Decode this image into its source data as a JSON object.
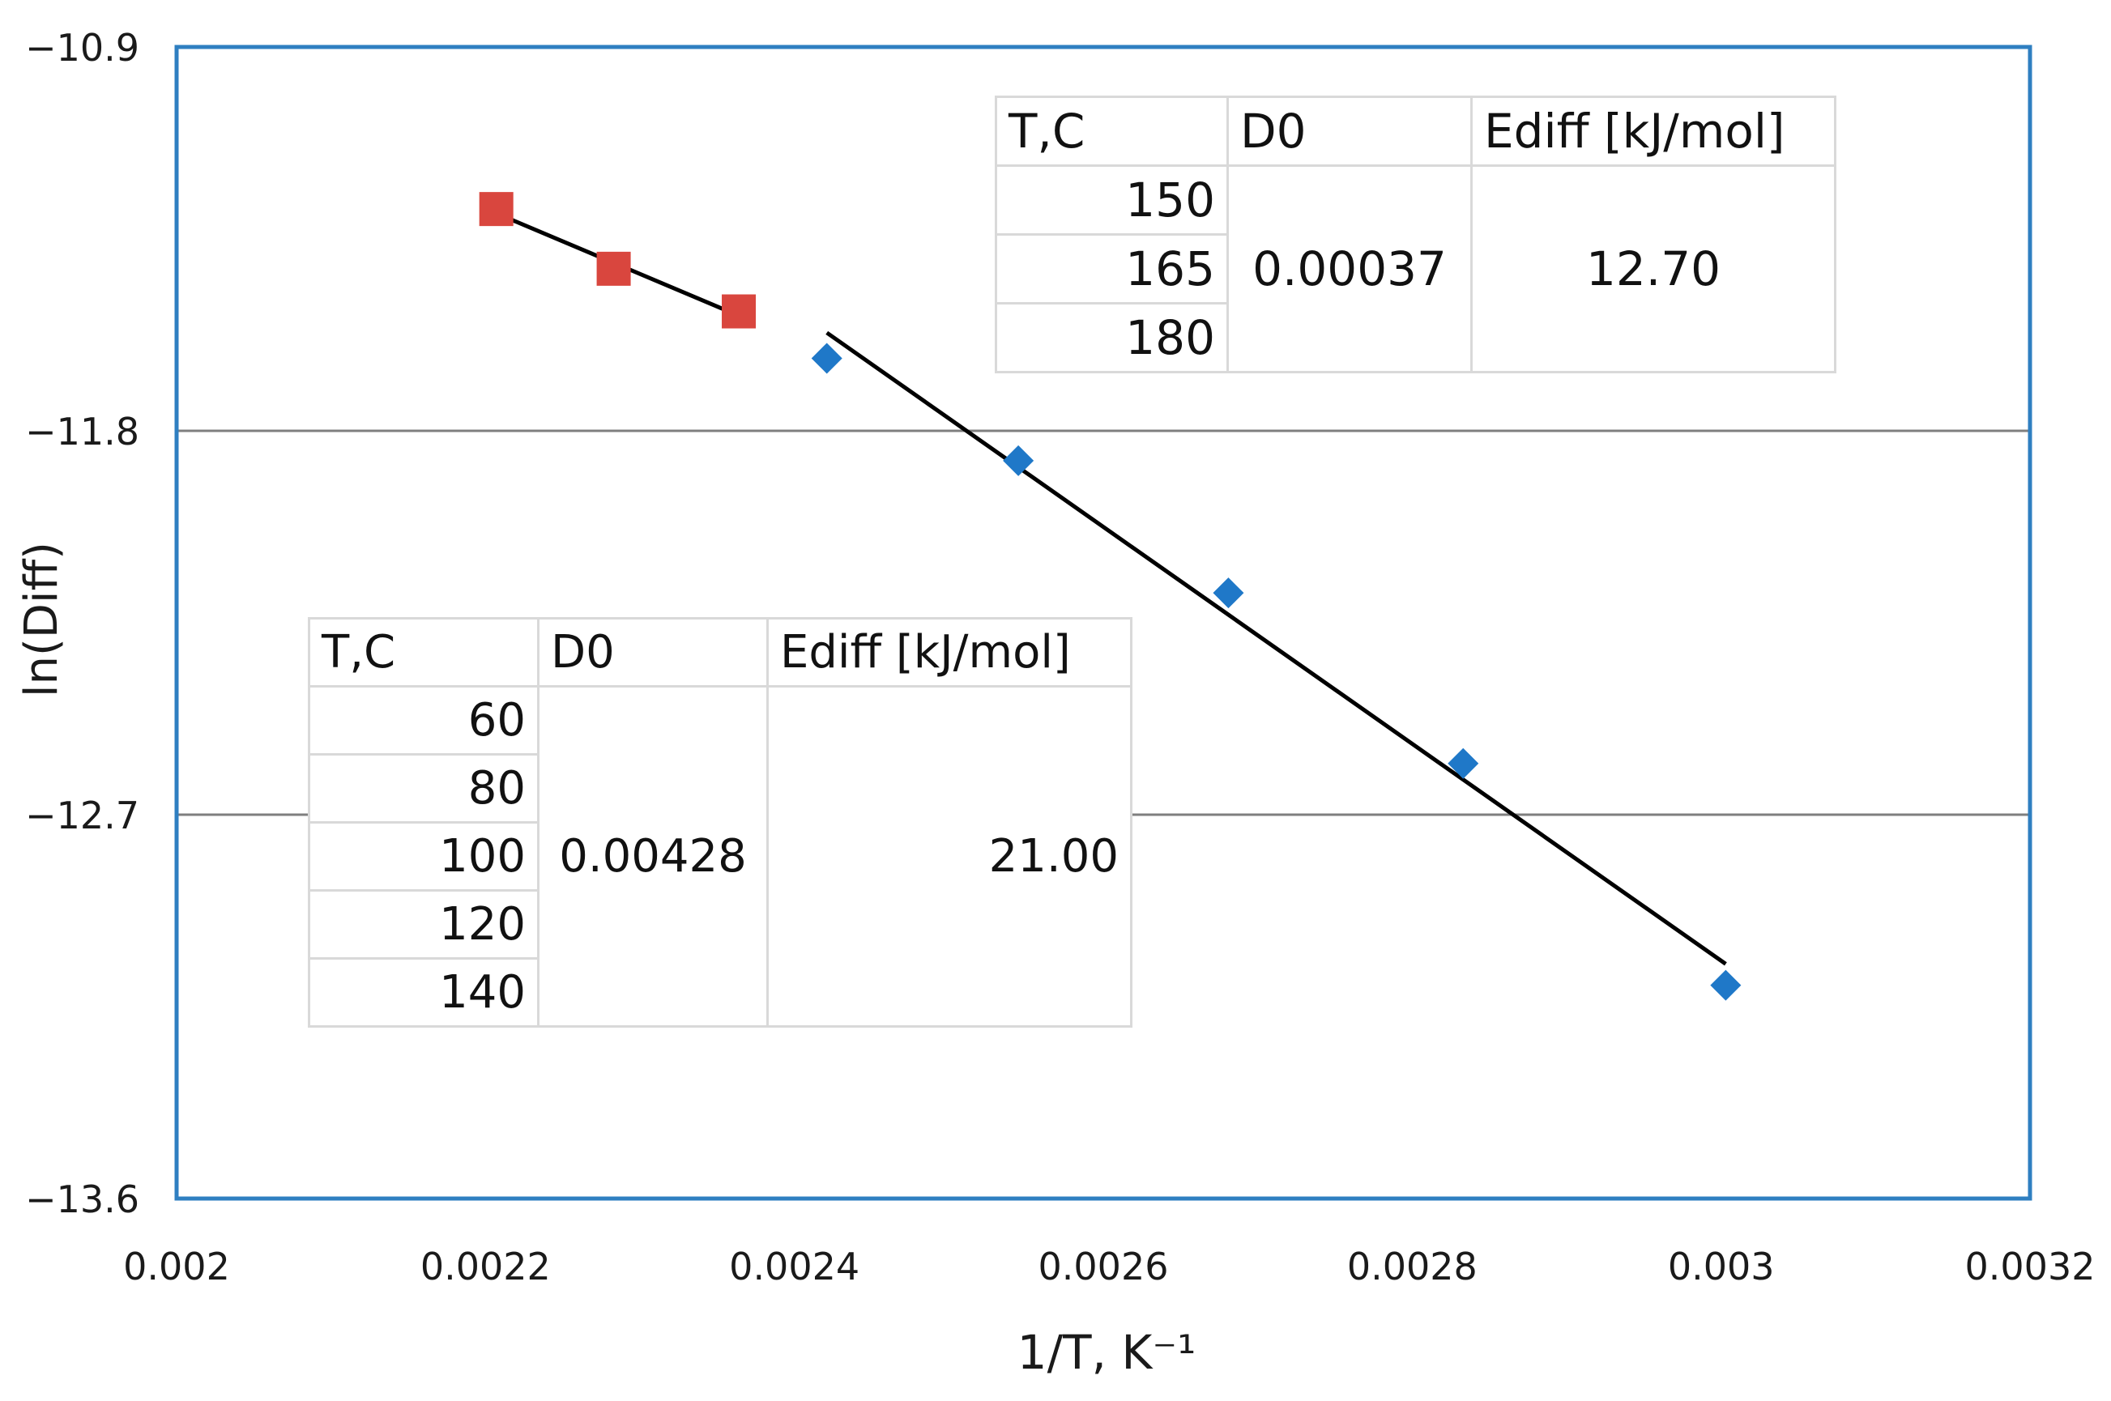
{
  "chart_data": {
    "type": "scatter",
    "xlabel": "1/T, K⁻¹",
    "ylabel": "ln(Diff)",
    "xlim": [
      0.002,
      0.0032
    ],
    "ylim": [
      -13.6,
      -10.9
    ],
    "xticks": [
      "0.002",
      "0.0022",
      "0.0024",
      "0.0026",
      "0.0028",
      "0.003",
      "0.0032"
    ],
    "yticks": [
      "-10.9",
      "-11.8",
      "-12.7",
      "-13.6"
    ],
    "grid": "horizontal",
    "series": [
      {
        "marker": "square",
        "color": "#d9463e",
        "x": [
          0.002207,
          0.002283,
          0.002364
        ],
        "y": [
          -11.28,
          -11.42,
          -11.52
        ],
        "trendline": {
          "x": [
            0.002207,
            0.002364
          ],
          "y": [
            -11.29,
            -11.53
          ]
        }
      },
      {
        "marker": "diamond",
        "color": "#1f78c8",
        "x": [
          0.002421,
          0.002545,
          0.002681,
          0.002833,
          0.003003
        ],
        "y": [
          -11.63,
          -11.87,
          -12.18,
          -12.58,
          -13.1
        ],
        "trendline": {
          "x": [
            0.002421,
            0.003003
          ],
          "y": [
            -11.57,
            -13.05
          ]
        }
      }
    ]
  },
  "tables": {
    "high": {
      "headers": [
        "T,C",
        "D0",
        "Ediff [kJ/mol]"
      ],
      "temps": [
        "150",
        "165",
        "180"
      ],
      "d0": "0.00037",
      "ediff": "12.70"
    },
    "low": {
      "headers": [
        "T,C",
        "D0",
        "Ediff [kJ/mol]"
      ],
      "temps": [
        "60",
        "80",
        "100",
        "120",
        "140"
      ],
      "d0": "0.00428",
      "ediff": "21.00"
    }
  },
  "colors": {
    "plot_border": "#2f7fc1",
    "gridline": "#7f7f7f",
    "trendline": "#000000"
  }
}
